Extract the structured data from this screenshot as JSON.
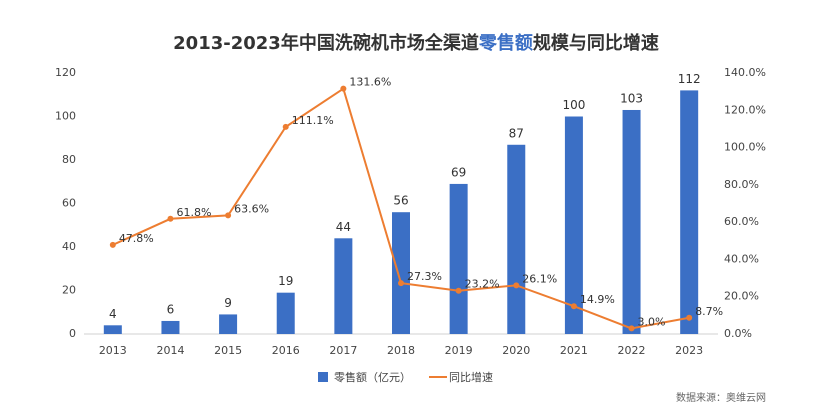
{
  "chart_data": {
    "type": "bar_line",
    "title": [
      "2013-2023年中国洗碗机市场全渠道",
      "零售额",
      "规模与同比增速"
    ],
    "title_highlight_color": "#3b6fc5",
    "categories": [
      "2013",
      "2014",
      "2015",
      "2016",
      "2017",
      "2018",
      "2019",
      "2020",
      "2021",
      "2022",
      "2023"
    ],
    "series": [
      {
        "name": "零售额（亿元）",
        "type": "bar",
        "color": "#3b6fc5",
        "values": [
          4,
          6,
          9,
          19,
          44,
          56,
          69,
          87,
          100,
          103,
          112
        ]
      },
      {
        "name": "同比增速",
        "type": "line",
        "axis": "y2",
        "color": "#ed7d31",
        "values": [
          47.8,
          61.8,
          63.6,
          111.1,
          131.6,
          27.3,
          23.2,
          26.1,
          14.9,
          3.0,
          8.7
        ],
        "value_labels": [
          "47.8%",
          "61.8%",
          "63.6%",
          "111.1%",
          "131.6%",
          "27.3%",
          "23.2%",
          "26.1%",
          "14.9%",
          "3.0%",
          "8.7%"
        ]
      }
    ],
    "ylim": [
      0,
      120
    ],
    "yticks": [
      0,
      20,
      40,
      60,
      80,
      100,
      120
    ],
    "y2lim": [
      0,
      140
    ],
    "y2ticks": [
      {
        "value": 0,
        "label": "0.0%"
      },
      {
        "value": 20,
        "label": "20.0%"
      },
      {
        "value": 40,
        "label": "40.0%"
      },
      {
        "value": 60,
        "label": "60.0%"
      },
      {
        "value": 80,
        "label": "80.0%"
      },
      {
        "value": 100,
        "label": "100.0%"
      },
      {
        "value": 120,
        "label": "120.0%"
      },
      {
        "value": 140,
        "label": "140.0%"
      }
    ],
    "grid": false,
    "legend": "bottom",
    "source": "数据来源：奥维云网"
  }
}
